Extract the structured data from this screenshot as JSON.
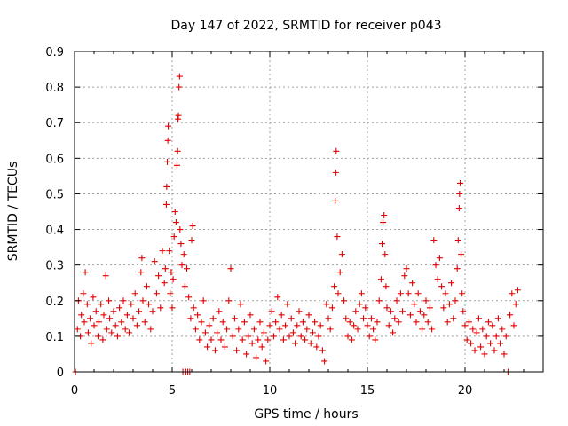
{
  "chart_data": {
    "type": "scatter",
    "title": "Day 147 of 2022, SRMTID for receiver p043",
    "xlabel": "GPS time / hours",
    "ylabel": "SRMTID / TECUs",
    "xlim": [
      0,
      24
    ],
    "ylim": [
      0,
      0.9
    ],
    "xticks": [
      0,
      5,
      10,
      15,
      20
    ],
    "xtick_labels": [
      "0",
      "5",
      "10",
      "15",
      "20"
    ],
    "yticks": [
      0,
      0.1,
      0.2,
      0.3,
      0.4,
      0.5,
      0.6,
      0.7,
      0.8,
      0.9
    ],
    "ytick_labels": [
      "0",
      "0.1",
      "0.2",
      "0.3",
      "0.4",
      "0.5",
      "0.6",
      "0.7",
      "0.8",
      "0.9"
    ],
    "grid": true,
    "marker": "+",
    "series": [
      {
        "name": "SRMTID",
        "color": "#e00000",
        "points": [
          [
            0.05,
            0.0
          ],
          [
            0.15,
            0.12
          ],
          [
            0.2,
            0.2
          ],
          [
            0.3,
            0.1
          ],
          [
            0.35,
            0.16
          ],
          [
            0.45,
            0.22
          ],
          [
            0.5,
            0.14
          ],
          [
            0.55,
            0.28
          ],
          [
            0.65,
            0.19
          ],
          [
            0.7,
            0.11
          ],
          [
            0.8,
            0.15
          ],
          [
            0.85,
            0.08
          ],
          [
            0.95,
            0.21
          ],
          [
            1.0,
            0.13
          ],
          [
            1.1,
            0.17
          ],
          [
            1.2,
            0.1
          ],
          [
            1.25,
            0.14
          ],
          [
            1.35,
            0.19
          ],
          [
            1.45,
            0.09
          ],
          [
            1.5,
            0.16
          ],
          [
            1.6,
            0.27
          ],
          [
            1.65,
            0.12
          ],
          [
            1.75,
            0.2
          ],
          [
            1.8,
            0.15
          ],
          [
            1.9,
            0.11
          ],
          [
            2.0,
            0.17
          ],
          [
            2.1,
            0.13
          ],
          [
            2.2,
            0.1
          ],
          [
            2.3,
            0.18
          ],
          [
            2.4,
            0.14
          ],
          [
            2.5,
            0.2
          ],
          [
            2.6,
            0.12
          ],
          [
            2.7,
            0.16
          ],
          [
            2.8,
            0.11
          ],
          [
            2.9,
            0.19
          ],
          [
            3.0,
            0.15
          ],
          [
            3.1,
            0.22
          ],
          [
            3.2,
            0.13
          ],
          [
            3.3,
            0.17
          ],
          [
            3.4,
            0.28
          ],
          [
            3.45,
            0.32
          ],
          [
            3.5,
            0.2
          ],
          [
            3.6,
            0.14
          ],
          [
            3.7,
            0.24
          ],
          [
            3.8,
            0.19
          ],
          [
            3.9,
            0.12
          ],
          [
            4.0,
            0.17
          ],
          [
            4.1,
            0.31
          ],
          [
            4.2,
            0.22
          ],
          [
            4.3,
            0.27
          ],
          [
            4.4,
            0.18
          ],
          [
            4.5,
            0.34
          ],
          [
            4.6,
            0.25
          ],
          [
            4.65,
            0.29
          ],
          [
            4.7,
            0.47
          ],
          [
            4.72,
            0.52
          ],
          [
            4.75,
            0.59
          ],
          [
            4.78,
            0.65
          ],
          [
            4.8,
            0.69
          ],
          [
            4.85,
            0.34
          ],
          [
            4.9,
            0.22
          ],
          [
            4.95,
            0.28
          ],
          [
            5.0,
            0.18
          ],
          [
            5.05,
            0.26
          ],
          [
            5.1,
            0.38
          ],
          [
            5.15,
            0.45
          ],
          [
            5.2,
            0.42
          ],
          [
            5.25,
            0.58
          ],
          [
            5.28,
            0.62
          ],
          [
            5.3,
            0.71
          ],
          [
            5.32,
            0.72
          ],
          [
            5.35,
            0.8
          ],
          [
            5.38,
            0.83
          ],
          [
            5.4,
            0.4
          ],
          [
            5.45,
            0.36
          ],
          [
            5.5,
            0.3
          ],
          [
            5.55,
            0.0
          ],
          [
            5.6,
            0.33
          ],
          [
            5.65,
            0.24
          ],
          [
            5.7,
            0.0
          ],
          [
            5.75,
            0.29
          ],
          [
            5.8,
            0.0
          ],
          [
            5.85,
            0.21
          ],
          [
            5.9,
            0.0
          ],
          [
            5.95,
            0.15
          ],
          [
            6.0,
            0.37
          ],
          [
            6.05,
            0.41
          ],
          [
            6.1,
            0.18
          ],
          [
            6.2,
            0.12
          ],
          [
            6.3,
            0.16
          ],
          [
            6.4,
            0.09
          ],
          [
            6.5,
            0.14
          ],
          [
            6.6,
            0.2
          ],
          [
            6.7,
            0.11
          ],
          [
            6.8,
            0.07
          ],
          [
            6.9,
            0.13
          ],
          [
            7.0,
            0.09
          ],
          [
            7.1,
            0.15
          ],
          [
            7.2,
            0.06
          ],
          [
            7.3,
            0.11
          ],
          [
            7.4,
            0.17
          ],
          [
            7.5,
            0.09
          ],
          [
            7.6,
            0.14
          ],
          [
            7.7,
            0.07
          ],
          [
            7.8,
            0.12
          ],
          [
            7.9,
            0.2
          ],
          [
            8.0,
            0.29
          ],
          [
            8.1,
            0.1
          ],
          [
            8.2,
            0.15
          ],
          [
            8.3,
            0.06
          ],
          [
            8.4,
            0.12
          ],
          [
            8.5,
            0.19
          ],
          [
            8.6,
            0.09
          ],
          [
            8.7,
            0.14
          ],
          [
            8.8,
            0.05
          ],
          [
            8.9,
            0.1
          ],
          [
            9.0,
            0.16
          ],
          [
            9.1,
            0.08
          ],
          [
            9.2,
            0.12
          ],
          [
            9.3,
            0.04
          ],
          [
            9.4,
            0.09
          ],
          [
            9.5,
            0.14
          ],
          [
            9.6,
            0.07
          ],
          [
            9.7,
            0.11
          ],
          [
            9.8,
            0.03
          ],
          [
            9.9,
            0.09
          ],
          [
            10.0,
            0.13
          ],
          [
            10.1,
            0.17
          ],
          [
            10.2,
            0.1
          ],
          [
            10.3,
            0.14
          ],
          [
            10.4,
            0.21
          ],
          [
            10.5,
            0.12
          ],
          [
            10.6,
            0.16
          ],
          [
            10.7,
            0.09
          ],
          [
            10.8,
            0.13
          ],
          [
            10.9,
            0.19
          ],
          [
            11.0,
            0.1
          ],
          [
            11.1,
            0.15
          ],
          [
            11.2,
            0.11
          ],
          [
            11.3,
            0.08
          ],
          [
            11.4,
            0.13
          ],
          [
            11.5,
            0.17
          ],
          [
            11.6,
            0.1
          ],
          [
            11.7,
            0.14
          ],
          [
            11.8,
            0.09
          ],
          [
            11.9,
            0.12
          ],
          [
            12.0,
            0.16
          ],
          [
            12.1,
            0.08
          ],
          [
            12.2,
            0.11
          ],
          [
            12.3,
            0.14
          ],
          [
            12.4,
            0.07
          ],
          [
            12.5,
            0.1
          ],
          [
            12.6,
            0.13
          ],
          [
            12.7,
            0.06
          ],
          [
            12.8,
            0.03
          ],
          [
            12.9,
            0.19
          ],
          [
            13.0,
            0.15
          ],
          [
            13.1,
            0.12
          ],
          [
            13.2,
            0.18
          ],
          [
            13.3,
            0.24
          ],
          [
            13.35,
            0.48
          ],
          [
            13.38,
            0.56
          ],
          [
            13.4,
            0.62
          ],
          [
            13.45,
            0.38
          ],
          [
            13.5,
            0.22
          ],
          [
            13.6,
            0.28
          ],
          [
            13.7,
            0.33
          ],
          [
            13.8,
            0.2
          ],
          [
            13.9,
            0.15
          ],
          [
            14.0,
            0.1
          ],
          [
            14.1,
            0.14
          ],
          [
            14.2,
            0.09
          ],
          [
            14.3,
            0.13
          ],
          [
            14.4,
            0.17
          ],
          [
            14.5,
            0.12
          ],
          [
            14.6,
            0.19
          ],
          [
            14.7,
            0.22
          ],
          [
            14.8,
            0.15
          ],
          [
            14.9,
            0.18
          ],
          [
            15.0,
            0.13
          ],
          [
            15.1,
            0.1
          ],
          [
            15.2,
            0.15
          ],
          [
            15.3,
            0.12
          ],
          [
            15.4,
            0.09
          ],
          [
            15.5,
            0.14
          ],
          [
            15.6,
            0.2
          ],
          [
            15.7,
            0.26
          ],
          [
            15.75,
            0.36
          ],
          [
            15.8,
            0.42
          ],
          [
            15.85,
            0.44
          ],
          [
            15.9,
            0.33
          ],
          [
            15.95,
            0.24
          ],
          [
            16.0,
            0.18
          ],
          [
            16.1,
            0.13
          ],
          [
            16.2,
            0.17
          ],
          [
            16.3,
            0.11
          ],
          [
            16.4,
            0.15
          ],
          [
            16.5,
            0.2
          ],
          [
            16.6,
            0.14
          ],
          [
            16.7,
            0.22
          ],
          [
            16.8,
            0.17
          ],
          [
            16.9,
            0.27
          ],
          [
            17.0,
            0.29
          ],
          [
            17.1,
            0.22
          ],
          [
            17.2,
            0.16
          ],
          [
            17.3,
            0.25
          ],
          [
            17.4,
            0.19
          ],
          [
            17.5,
            0.14
          ],
          [
            17.6,
            0.22
          ],
          [
            17.7,
            0.17
          ],
          [
            17.8,
            0.12
          ],
          [
            17.9,
            0.16
          ],
          [
            18.0,
            0.2
          ],
          [
            18.1,
            0.14
          ],
          [
            18.2,
            0.18
          ],
          [
            18.3,
            0.12
          ],
          [
            18.4,
            0.37
          ],
          [
            18.5,
            0.3
          ],
          [
            18.6,
            0.26
          ],
          [
            18.7,
            0.32
          ],
          [
            18.8,
            0.24
          ],
          [
            18.9,
            0.18
          ],
          [
            19.0,
            0.22
          ],
          [
            19.1,
            0.14
          ],
          [
            19.2,
            0.19
          ],
          [
            19.3,
            0.25
          ],
          [
            19.4,
            0.15
          ],
          [
            19.5,
            0.2
          ],
          [
            19.6,
            0.29
          ],
          [
            19.65,
            0.37
          ],
          [
            19.7,
            0.46
          ],
          [
            19.72,
            0.5
          ],
          [
            19.75,
            0.53
          ],
          [
            19.8,
            0.33
          ],
          [
            19.85,
            0.22
          ],
          [
            19.9,
            0.17
          ],
          [
            20.0,
            0.13
          ],
          [
            20.1,
            0.09
          ],
          [
            20.2,
            0.14
          ],
          [
            20.3,
            0.08
          ],
          [
            20.4,
            0.12
          ],
          [
            20.5,
            0.06
          ],
          [
            20.6,
            0.11
          ],
          [
            20.7,
            0.15
          ],
          [
            20.8,
            0.07
          ],
          [
            20.9,
            0.12
          ],
          [
            21.0,
            0.05
          ],
          [
            21.1,
            0.1
          ],
          [
            21.2,
            0.14
          ],
          [
            21.3,
            0.08
          ],
          [
            21.4,
            0.13
          ],
          [
            21.5,
            0.06
          ],
          [
            21.6,
            0.1
          ],
          [
            21.7,
            0.15
          ],
          [
            21.8,
            0.08
          ],
          [
            21.9,
            0.12
          ],
          [
            22.0,
            0.05
          ],
          [
            22.1,
            0.1
          ],
          [
            22.2,
            0.0
          ],
          [
            22.3,
            0.16
          ],
          [
            22.4,
            0.22
          ],
          [
            22.5,
            0.13
          ],
          [
            22.6,
            0.19
          ],
          [
            22.7,
            0.23
          ]
        ]
      }
    ]
  }
}
